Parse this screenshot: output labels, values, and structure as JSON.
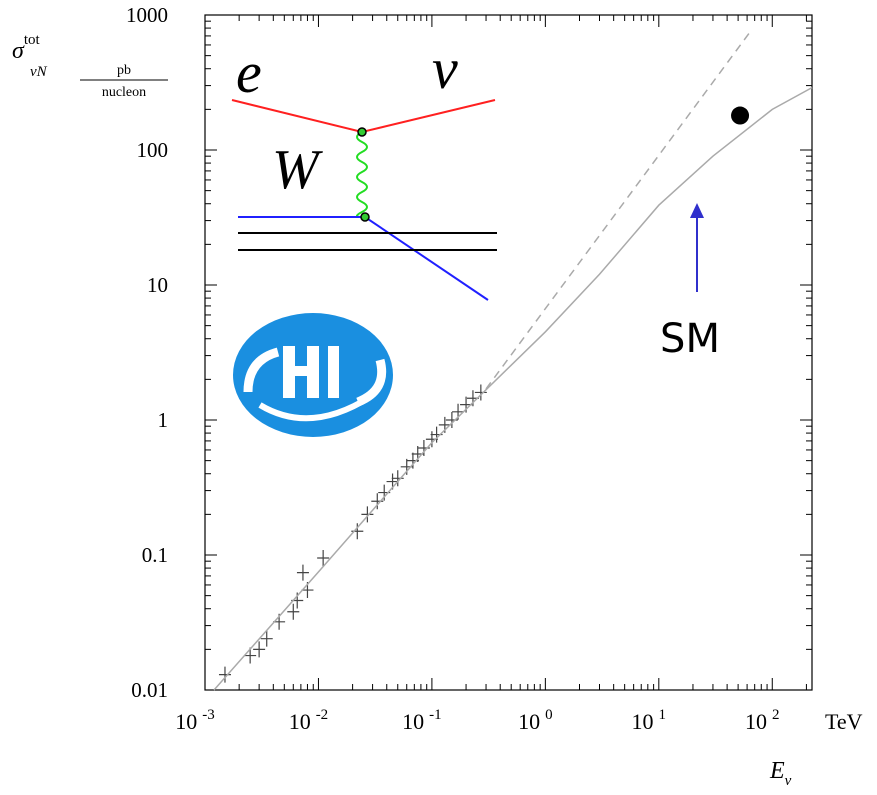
{
  "chart_data": {
    "type": "scatter",
    "x_label": {
      "symbol": "E",
      "subscript": "ν",
      "unit": "TeV"
    },
    "y_label": {
      "symbol": "σ",
      "subscript": "νN",
      "superscript": "tot",
      "unit_numerator": "pb",
      "unit_denominator": "nucleon"
    },
    "log_x": true,
    "log_y": true,
    "xlim": [
      0.001,
      224
    ],
    "ylim": [
      0.01,
      1000
    ],
    "xticks": [
      {
        "value": 0.001,
        "label": "10",
        "exponent": "-3"
      },
      {
        "value": 0.01,
        "label": "10",
        "exponent": "-2"
      },
      {
        "value": 0.1,
        "label": "10",
        "exponent": "-1"
      },
      {
        "value": 1,
        "label": "10",
        "exponent": "0"
      },
      {
        "value": 10,
        "label": "10",
        "exponent": "1"
      },
      {
        "value": 100,
        "label": "10",
        "exponent": "2"
      }
    ],
    "yticks": [
      0.01,
      0.1,
      1,
      10,
      100,
      1000
    ],
    "series": [
      {
        "color": "#444444",
        "marker": "cross",
        "x": [
          0.0015,
          0.0025,
          0.003,
          0.0035,
          0.0045,
          0.006,
          0.0065,
          0.0073,
          0.008,
          0.011,
          0.022,
          0.027,
          0.033,
          0.038,
          0.045,
          0.05,
          0.06,
          0.068,
          0.075,
          0.085,
          0.1,
          0.11,
          0.13,
          0.15,
          0.17,
          0.2,
          0.23,
          0.27
        ],
        "values": [
          0.013,
          0.018,
          0.02,
          0.024,
          0.032,
          0.038,
          0.046,
          0.074,
          0.055,
          0.095,
          0.15,
          0.2,
          0.25,
          0.29,
          0.35,
          0.37,
          0.45,
          0.5,
          0.56,
          0.62,
          0.72,
          0.78,
          0.92,
          1.0,
          1.15,
          1.3,
          1.45,
          1.6
        ]
      },
      {
        "color": "#aaaaaa",
        "line": "solid",
        "x": [
          0.0012,
          0.01,
          0.1,
          1,
          3,
          10,
          30,
          100,
          224
        ],
        "values": [
          0.01,
          0.075,
          0.68,
          4.5,
          12,
          39,
          90,
          200,
          290
        ]
      },
      {
        "color": "#aaaaaa",
        "line": "dashed",
        "x": [
          0.3,
          66
        ],
        "values": [
          1.7,
          780
        ]
      },
      {
        "color": "#000000",
        "marker": "dot",
        "x": [
          52
        ],
        "values": [
          180
        ]
      }
    ],
    "annotation": "SM",
    "inset_labels": {
      "incoming": "e",
      "outgoing": "ν",
      "boson": "W"
    }
  }
}
